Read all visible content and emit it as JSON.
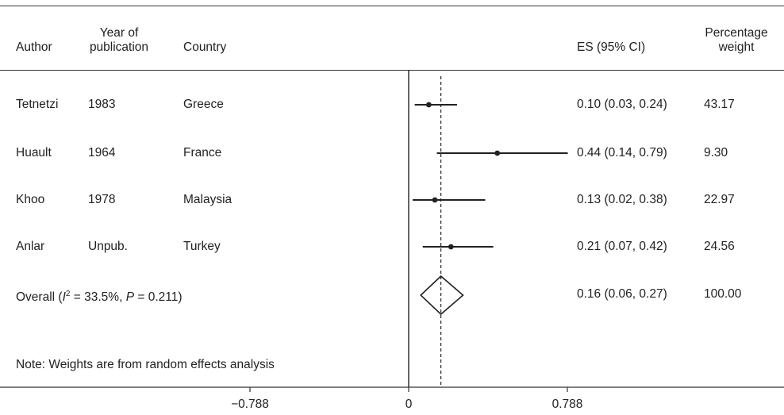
{
  "chart_data": {
    "type": "forest",
    "columns": {
      "author": "Author",
      "year": "Year of publication",
      "year_line1": "Year of",
      "year_line2": "publication",
      "country": "Country",
      "es": "ES (95% CI)",
      "weight": "Percentage weight",
      "weight_line1": "Percentage",
      "weight_line2": "weight"
    },
    "studies": [
      {
        "author": "Tetnetzi",
        "year": "1983",
        "country": "Greece",
        "es": 0.1,
        "lo": 0.03,
        "hi": 0.24,
        "es_text": "0.10 (0.03, 0.24)",
        "weight_text": "43.17",
        "weight": 43.17
      },
      {
        "author": "Huault",
        "year": "1964",
        "country": "France",
        "es": 0.44,
        "lo": 0.14,
        "hi": 0.79,
        "es_text": "0.44 (0.14, 0.79)",
        "weight_text": "9.30",
        "weight": 9.3
      },
      {
        "author": "Khoo",
        "year": "1978",
        "country": "Malaysia",
        "es": 0.13,
        "lo": 0.02,
        "hi": 0.38,
        "es_text": "0.13 (0.02, 0.38)",
        "weight_text": "22.97",
        "weight": 22.97
      },
      {
        "author": "Anlar",
        "year": "Unpub.",
        "country": "Turkey",
        "es": 0.21,
        "lo": 0.07,
        "hi": 0.42,
        "es_text": "0.21 (0.07, 0.42)",
        "weight_text": "24.56",
        "weight": 24.56
      }
    ],
    "overall": {
      "label_prefix": "Overall (",
      "i_symbol": "I",
      "i_sup": "2",
      "i_value": " = 33.5%, ",
      "p_symbol": "P",
      "p_value": " = 0.211)",
      "es": 0.16,
      "lo": 0.06,
      "hi": 0.27,
      "es_text": "0.16 (0.06, 0.27)",
      "weight_text": "100.00"
    },
    "note": "Note: Weights are from random effects analysis",
    "x_axis": {
      "ticks": [
        -0.788,
        0,
        0.788
      ],
      "tick_labels": [
        "−0.788",
        "0",
        "0.788"
      ],
      "range": [
        -0.788,
        0.788
      ]
    },
    "null_line": 0,
    "reference_line": 0.16
  }
}
